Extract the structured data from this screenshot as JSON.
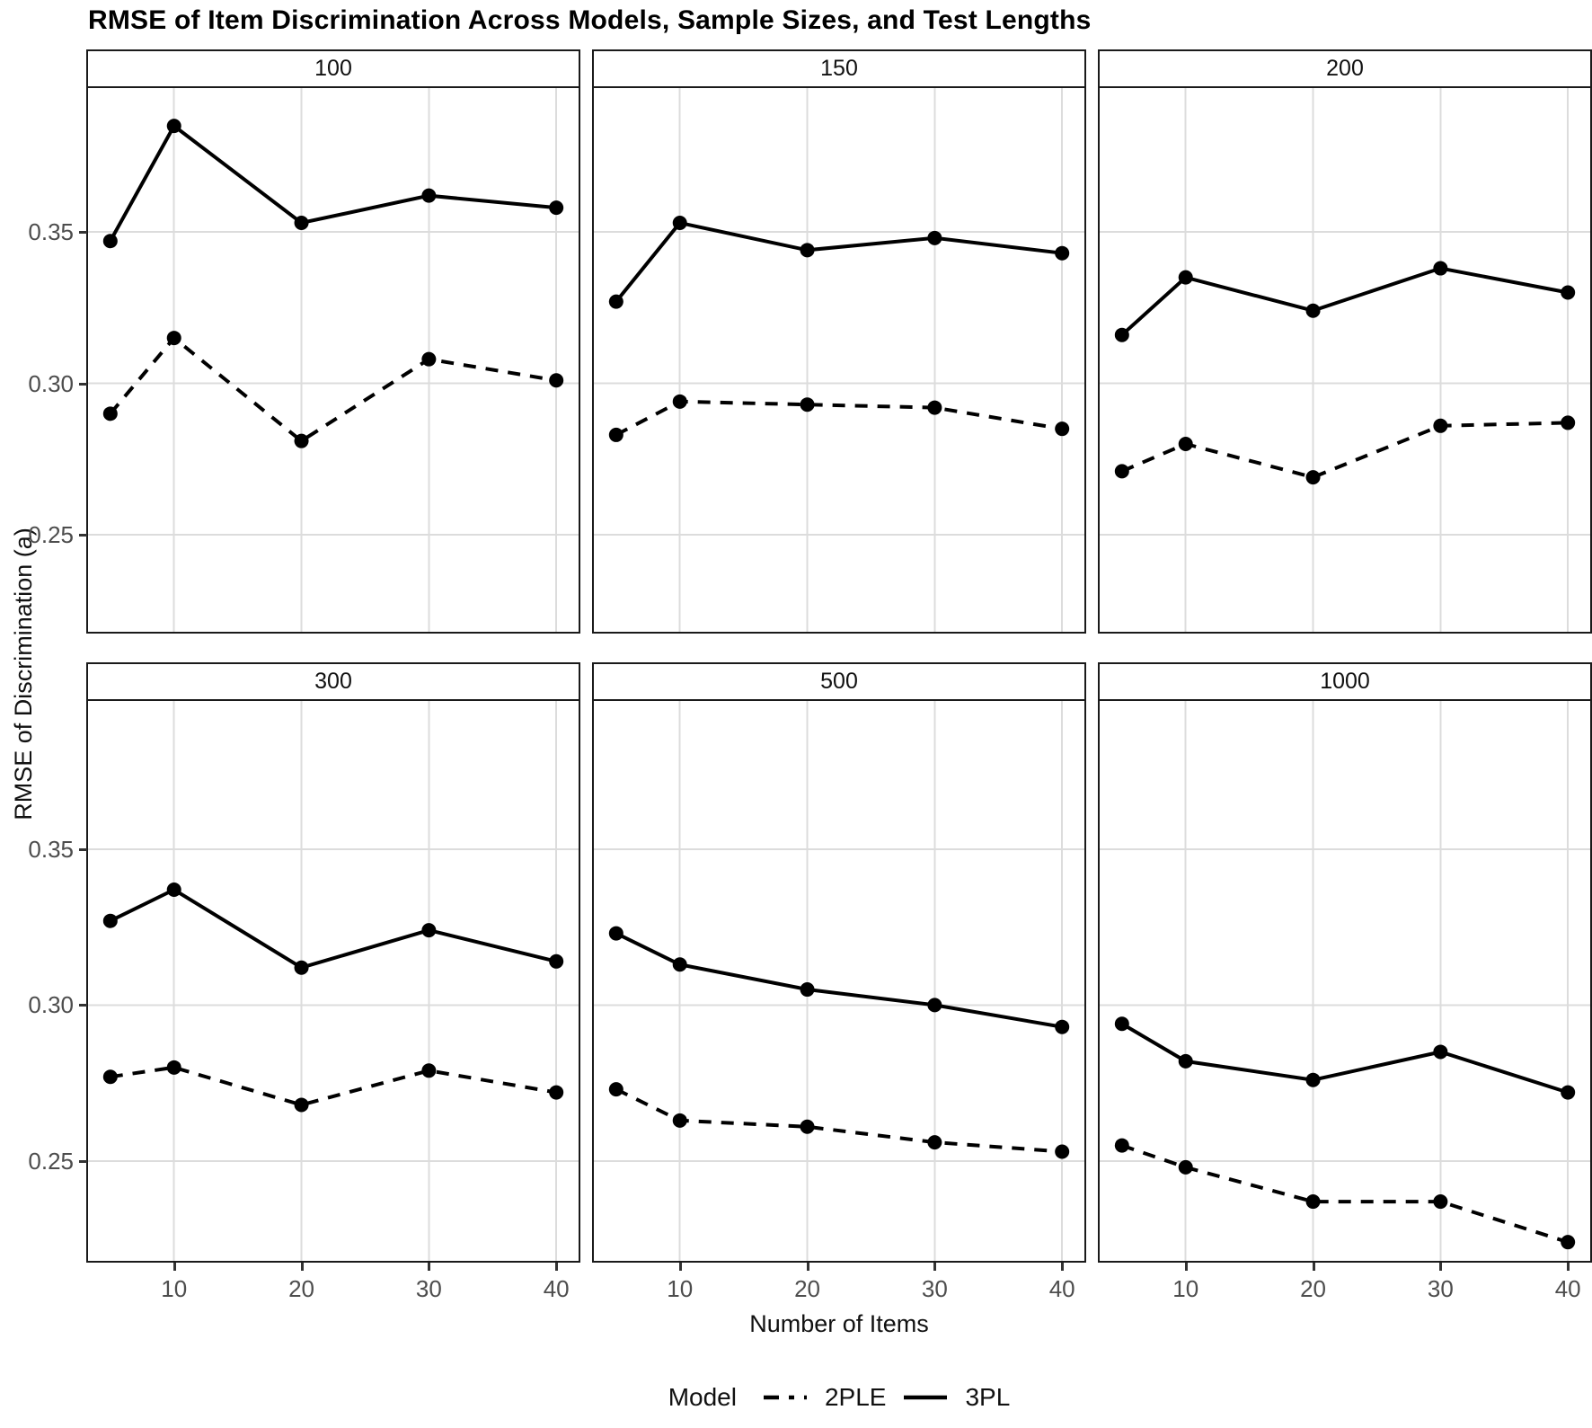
{
  "title": "RMSE of Item Discrimination Across Models, Sample Sizes, and Test Lengths",
  "y_axis_title": "RMSE of Discrimination (a)",
  "x_axis_title": "Number of Items",
  "legend": {
    "label": "Model",
    "items": [
      {
        "name": "2PLE",
        "linetype": "dashed"
      },
      {
        "name": "3PL",
        "linetype": "solid"
      }
    ]
  },
  "colors": {
    "line": "#000000",
    "point": "#000000",
    "gridline": "#dcdcdc",
    "panel_border": "#1a1a1a",
    "tick_label": "#4d4d4d",
    "background": "#ffffff"
  },
  "chart_data": {
    "type": "line",
    "title": "RMSE of Item Discrimination Across Models, Sample Sizes, and Test Lengths",
    "xlabel": "Number of Items",
    "ylabel": "RMSE of Discrimination (a)",
    "facet_variable": "sample size",
    "x": [
      5,
      10,
      20,
      30,
      40
    ],
    "x_ticks": [
      {
        "value": 10,
        "label": "10"
      },
      {
        "value": 20,
        "label": "20"
      },
      {
        "value": 30,
        "label": "30"
      },
      {
        "value": 40,
        "label": "40"
      }
    ],
    "y_ticks": [
      {
        "value": 0.25,
        "label": "0.25"
      },
      {
        "value": 0.3,
        "label": "0.30"
      },
      {
        "value": 0.35,
        "label": "0.35"
      }
    ],
    "xlim": [
      3.25,
      41.75
    ],
    "ylim": [
      0.218,
      0.3975
    ],
    "grid": "major",
    "legend_position": "bottom",
    "facets": [
      {
        "label": "100",
        "series": [
          {
            "name": "2PLE",
            "linetype": "dashed",
            "values": [
              0.29,
              0.315,
              0.281,
              0.308,
              0.301
            ]
          },
          {
            "name": "3PL",
            "linetype": "solid",
            "values": [
              0.347,
              0.385,
              0.353,
              0.362,
              0.358
            ]
          }
        ]
      },
      {
        "label": "150",
        "series": [
          {
            "name": "2PLE",
            "linetype": "dashed",
            "values": [
              0.283,
              0.294,
              0.293,
              0.292,
              0.285
            ]
          },
          {
            "name": "3PL",
            "linetype": "solid",
            "values": [
              0.327,
              0.353,
              0.344,
              0.348,
              0.343
            ]
          }
        ]
      },
      {
        "label": "200",
        "series": [
          {
            "name": "2PLE",
            "linetype": "dashed",
            "values": [
              0.271,
              0.28,
              0.269,
              0.286,
              0.287
            ]
          },
          {
            "name": "3PL",
            "linetype": "solid",
            "values": [
              0.316,
              0.335,
              0.324,
              0.338,
              0.33
            ]
          }
        ]
      },
      {
        "label": "300",
        "series": [
          {
            "name": "2PLE",
            "linetype": "dashed",
            "values": [
              0.277,
              0.28,
              0.268,
              0.279,
              0.272
            ]
          },
          {
            "name": "3PL",
            "linetype": "solid",
            "values": [
              0.327,
              0.337,
              0.312,
              0.324,
              0.314
            ]
          }
        ]
      },
      {
        "label": "500",
        "series": [
          {
            "name": "2PLE",
            "linetype": "dashed",
            "values": [
              0.273,
              0.263,
              0.261,
              0.256,
              0.253
            ]
          },
          {
            "name": "3PL",
            "linetype": "solid",
            "values": [
              0.323,
              0.313,
              0.305,
              0.3,
              0.293
            ]
          }
        ]
      },
      {
        "label": "1000",
        "series": [
          {
            "name": "2PLE",
            "linetype": "dashed",
            "values": [
              0.255,
              0.248,
              0.237,
              0.237,
              0.224
            ]
          },
          {
            "name": "3PL",
            "linetype": "solid",
            "values": [
              0.294,
              0.282,
              0.276,
              0.285,
              0.272
            ]
          }
        ]
      }
    ]
  }
}
